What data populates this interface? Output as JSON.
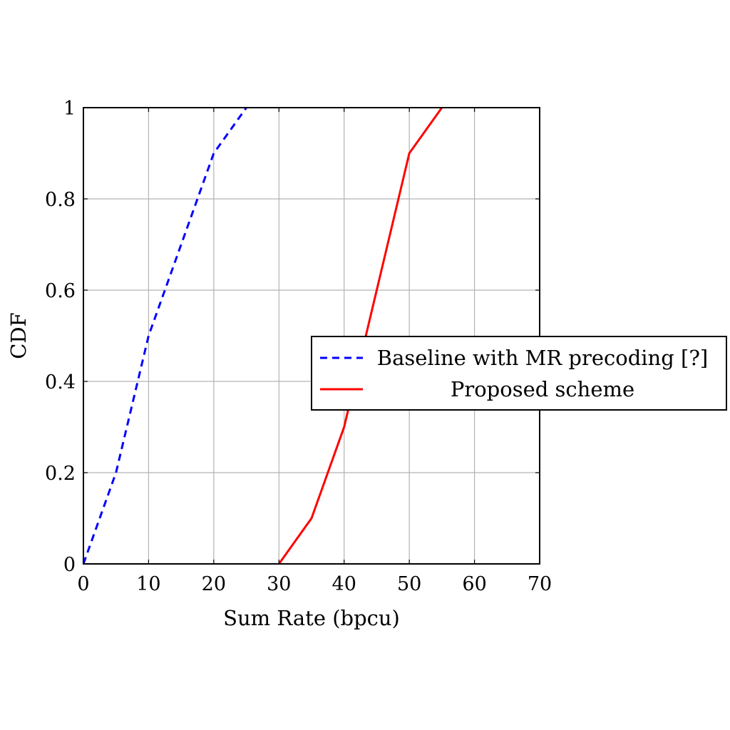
{
  "chart_data": {
    "type": "line",
    "xlabel": "Sum Rate (bpcu)",
    "ylabel": "CDF",
    "xlim": [
      0,
      70
    ],
    "ylim": [
      0,
      1
    ],
    "xticks": [
      "0",
      "10",
      "20",
      "30",
      "40",
      "50",
      "60",
      "70"
    ],
    "yticks": [
      "0",
      "0.2",
      "0.4",
      "0.6",
      "0.8",
      "1"
    ],
    "grid": true,
    "legend_position": "right, overlapping plot edge",
    "series": [
      {
        "name": "Baseline with MR precoding [?]",
        "color": "#0000ff",
        "style": "dashed",
        "x": [
          0,
          5,
          10,
          15,
          20,
          25
        ],
        "y": [
          0,
          0.2,
          0.5,
          0.7,
          0.9,
          1.0
        ]
      },
      {
        "name": "Proposed scheme",
        "color": "#ff0000",
        "style": "solid",
        "x": [
          30,
          35,
          40,
          45,
          50,
          55
        ],
        "y": [
          0,
          0.1,
          0.3,
          0.6,
          0.9,
          1.0
        ]
      }
    ]
  }
}
